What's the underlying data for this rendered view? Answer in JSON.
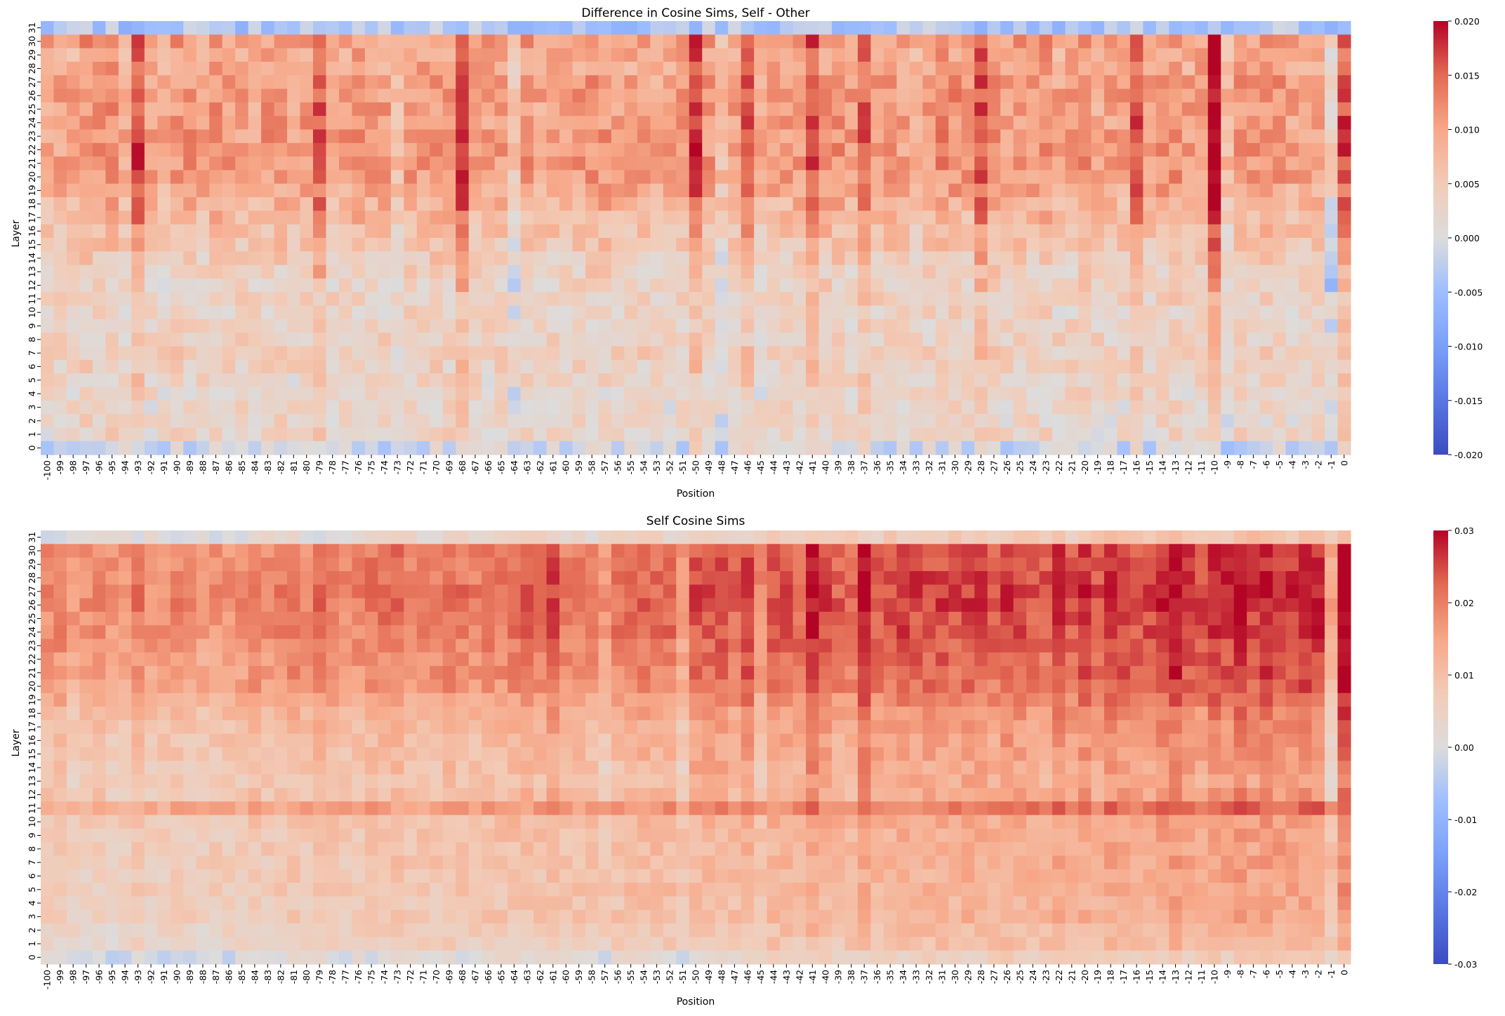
{
  "chart_data": [
    {
      "type": "heatmap",
      "title": "Difference in Cosine Sims, Self - Other",
      "xlabel": "Position",
      "ylabel": "Layer",
      "x": [
        -100,
        -99,
        -98,
        -97,
        -96,
        -95,
        -94,
        -93,
        -92,
        -91,
        -90,
        -89,
        -88,
        -87,
        -86,
        -85,
        -84,
        -83,
        -82,
        -81,
        -80,
        -79,
        -78,
        -77,
        -76,
        -75,
        -74,
        -73,
        -72,
        -71,
        -70,
        -69,
        -68,
        -67,
        -66,
        -65,
        -64,
        -63,
        -62,
        -61,
        -60,
        -59,
        -58,
        -57,
        -56,
        -55,
        -54,
        -53,
        -52,
        -51,
        -50,
        -49,
        -48,
        -47,
        -46,
        -45,
        -44,
        -43,
        -42,
        -41,
        -40,
        -39,
        -38,
        -37,
        -36,
        -35,
        -34,
        -33,
        -32,
        -31,
        -30,
        -29,
        -28,
        -27,
        -26,
        -25,
        -24,
        -23,
        -22,
        -21,
        -20,
        -19,
        -18,
        -17,
        -16,
        -15,
        -14,
        -13,
        -12,
        -11,
        -10,
        -9,
        -8,
        -7,
        -6,
        -5,
        -4,
        -3,
        -2,
        -1,
        0
      ],
      "y": [
        31,
        30,
        29,
        28,
        27,
        26,
        25,
        24,
        23,
        22,
        21,
        20,
        19,
        18,
        17,
        16,
        15,
        14,
        13,
        12,
        11,
        10,
        9,
        8,
        7,
        6,
        5,
        4,
        3,
        2,
        1,
        0
      ],
      "colormap": "coolwarm",
      "vmin": -0.02,
      "vmax": 0.02,
      "colorbar_ticks": [
        "0.020",
        "0.015",
        "0.010",
        "0.005",
        "0.000",
        "-0.005",
        "-0.010",
        "-0.015",
        "-0.020"
      ],
      "row_profile": [
        -0.004,
        0.0105,
        0.0095,
        0.0095,
        0.0105,
        0.011,
        0.0105,
        0.0105,
        0.011,
        0.011,
        0.011,
        0.0105,
        0.0095,
        0.0085,
        0.0075,
        0.0065,
        0.006,
        0.0045,
        0.0035,
        0.003,
        0.0035,
        0.003,
        0.003,
        0.0035,
        0.004,
        0.0035,
        0.003,
        0.0025,
        0.0025,
        0.0025,
        0.003,
        -0.001
      ],
      "hot_columns": [
        {
          "x": -93,
          "boost": 0.006
        },
        {
          "x": -79,
          "boost": 0.005
        },
        {
          "x": -68,
          "boost": 0.007
        },
        {
          "x": -50,
          "boost": 0.007
        },
        {
          "x": -46,
          "boost": 0.006
        },
        {
          "x": -41,
          "boost": 0.006
        },
        {
          "x": -37,
          "boost": 0.005
        },
        {
          "x": -28,
          "boost": 0.006
        },
        {
          "x": -16,
          "boost": 0.005
        },
        {
          "x": -10,
          "boost": 0.009
        },
        {
          "x": 0,
          "boost": 0.005
        }
      ],
      "cool_columns": [
        {
          "x": -64,
          "boost": -0.005
        },
        {
          "x": -73,
          "boost": -0.004
        },
        {
          "x": -48,
          "boost": -0.005
        },
        {
          "x": -1,
          "boost": -0.007
        },
        {
          "x": -9,
          "boost": -0.004
        }
      ]
    },
    {
      "type": "heatmap",
      "title": "Self Cosine Sims",
      "xlabel": "Position",
      "ylabel": "Layer",
      "x": [
        -100,
        -99,
        -98,
        -97,
        -96,
        -95,
        -94,
        -93,
        -92,
        -91,
        -90,
        -89,
        -88,
        -87,
        -86,
        -85,
        -84,
        -83,
        -82,
        -81,
        -80,
        -79,
        -78,
        -77,
        -76,
        -75,
        -74,
        -73,
        -72,
        -71,
        -70,
        -69,
        -68,
        -67,
        -66,
        -65,
        -64,
        -63,
        -62,
        -61,
        -60,
        -59,
        -58,
        -57,
        -56,
        -55,
        -54,
        -53,
        -52,
        -51,
        -50,
        -49,
        -48,
        -47,
        -46,
        -45,
        -44,
        -43,
        -42,
        -41,
        -40,
        -39,
        -38,
        -37,
        -36,
        -35,
        -34,
        -33,
        -32,
        -31,
        -30,
        -29,
        -28,
        -27,
        -26,
        -25,
        -24,
        -23,
        -22,
        -21,
        -20,
        -19,
        -18,
        -17,
        -16,
        -15,
        -14,
        -13,
        -12,
        -11,
        -10,
        -9,
        -8,
        -7,
        -6,
        -5,
        -4,
        -3,
        -2,
        -1,
        0
      ],
      "y": [
        31,
        30,
        29,
        28,
        27,
        26,
        25,
        24,
        23,
        22,
        21,
        20,
        19,
        18,
        17,
        16,
        15,
        14,
        13,
        12,
        11,
        10,
        9,
        8,
        7,
        6,
        5,
        4,
        3,
        2,
        1,
        0
      ],
      "colormap": "coolwarm",
      "vmin": -0.03,
      "vmax": 0.03,
      "colorbar_ticks": [
        "0.03",
        "0.02",
        "0.01",
        "0.00",
        "-0.01",
        "-0.02",
        "-0.03"
      ],
      "row_profile": [
        0.004,
        0.021,
        0.021,
        0.022,
        0.022,
        0.022,
        0.021,
        0.021,
        0.02,
        0.019,
        0.019,
        0.018,
        0.016,
        0.014,
        0.013,
        0.012,
        0.012,
        0.011,
        0.01,
        0.011,
        0.017,
        0.011,
        0.01,
        0.01,
        0.01,
        0.0095,
        0.0095,
        0.009,
        0.009,
        0.0075,
        0.0065,
        0.002
      ],
      "column_gradient": [
        -0.004,
        0.006
      ],
      "hot_columns": [
        {
          "x": -93,
          "boost": 0.004
        },
        {
          "x": -79,
          "boost": 0.004
        },
        {
          "x": -61,
          "boost": 0.004
        },
        {
          "x": -46,
          "boost": 0.004
        },
        {
          "x": -41,
          "boost": 0.006
        },
        {
          "x": -37,
          "boost": 0.005
        },
        {
          "x": -13,
          "boost": 0.004
        },
        {
          "x": -8,
          "boost": 0.004
        },
        {
          "x": 0,
          "boost": 0.004
        }
      ],
      "cool_columns": [
        {
          "x": -57,
          "boost": -0.006
        },
        {
          "x": -51,
          "boost": -0.005
        },
        {
          "x": -45,
          "boost": -0.004
        },
        {
          "x": -1,
          "boost": -0.012
        }
      ]
    }
  ]
}
